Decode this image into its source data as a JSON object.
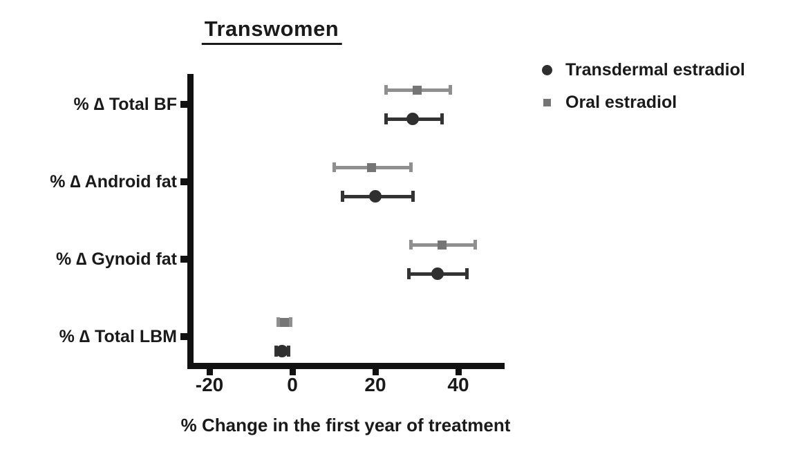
{
  "title": "Transwomen",
  "legend": [
    {
      "name": "Transdermal estradiol",
      "marker": "circle",
      "color": "#2f2f2f"
    },
    {
      "name": "Oral estradiol",
      "marker": "square",
      "color": "#757575"
    }
  ],
  "axis_color": "#111111",
  "chart_data": {
    "type": "scatter",
    "subtype": "horizontal-forest-plot-with-error-bars",
    "title": "Transwomen",
    "xlabel": "% Change in the first year of treatment",
    "xlim": [
      -25,
      51
    ],
    "xticks": [
      -20,
      0,
      20,
      40
    ],
    "grid": false,
    "legend_position": "top-right",
    "categories": [
      "% ∆ Total BF",
      "% ∆ Android fat",
      "% ∆ Gynoid fat",
      "% ∆ Total LBM"
    ],
    "rows_per_category_top_to_bottom": [
      "Oral estradiol",
      "Transdermal estradiol"
    ],
    "series": [
      {
        "name": "Oral estradiol",
        "marker": "square",
        "color": "#8f8f8f",
        "marker_color": "#757575",
        "values": [
          30,
          19,
          36,
          -2
        ],
        "ci_low": [
          22.5,
          10,
          28.5,
          -3.5
        ],
        "ci_high": [
          38,
          28.5,
          44,
          -0.5
        ]
      },
      {
        "name": "Transdermal estradiol",
        "marker": "circle",
        "color": "#333333",
        "marker_color": "#2f2f2f",
        "values": [
          29,
          20,
          35,
          -2.5
        ],
        "ci_low": [
          22.5,
          12,
          28,
          -4
        ],
        "ci_high": [
          36,
          29,
          42,
          -1
        ]
      }
    ]
  }
}
